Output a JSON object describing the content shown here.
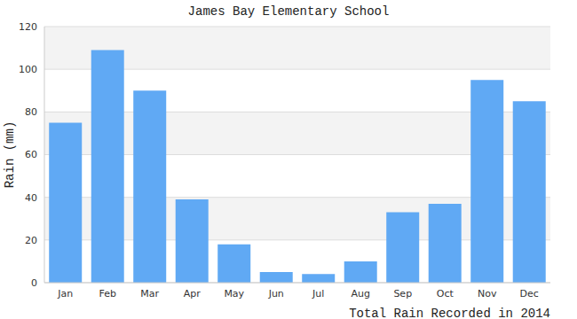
{
  "chart_data": {
    "type": "bar",
    "title": "James Bay Elementary School",
    "x_label": "Total Rain Recorded in 2014",
    "y_label": "Rain (mm)",
    "categories": [
      "Jan",
      "Feb",
      "Mar",
      "Apr",
      "May",
      "Jun",
      "Jul",
      "Aug",
      "Sep",
      "Oct",
      "Nov",
      "Dec"
    ],
    "values": [
      75,
      109,
      90,
      39,
      18,
      5,
      4,
      10,
      33,
      37,
      95,
      85
    ],
    "color": "#60a9f4",
    "ylim": [
      0,
      120
    ],
    "yticks": [
      0,
      20,
      40,
      60,
      80,
      100,
      120
    ],
    "grid": true
  }
}
